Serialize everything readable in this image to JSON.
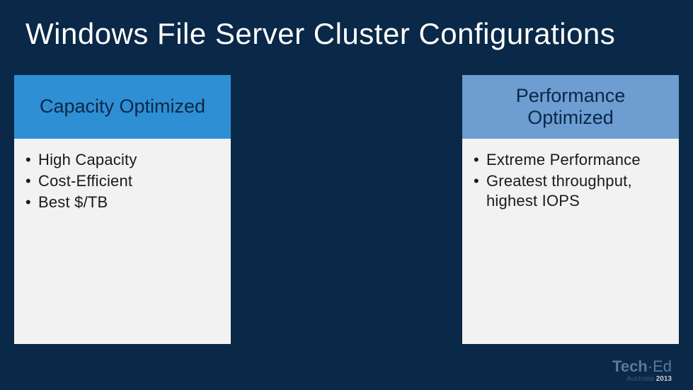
{
  "slide": {
    "title": "Windows File Server Cluster Configurations",
    "background_color": "#0a2847",
    "title_color": "#ffffff",
    "title_fontsize": 42
  },
  "columns": {
    "left": {
      "header": "Capacity Optimized",
      "header_bg": "#2f8fd4",
      "header_text_color": "#0a2847",
      "body_bg": "#f2f2f2",
      "bullets": [
        "High Capacity",
        "Cost-Efficient",
        "Best $/TB"
      ]
    },
    "right": {
      "header": "Performance Optimized",
      "header_bg": "#6d9dd1",
      "header_text_color": "#0a2847",
      "body_bg": "#f2f2f2",
      "bullets": [
        "Extreme Performance",
        "Greatest throughput, highest IOPS"
      ]
    },
    "bullet_fontsize": 22,
    "bullet_color": "#1a1a1a"
  },
  "footer": {
    "brand_bold": "Tech",
    "brand_light": "·Ed",
    "sub_text": "Australia ",
    "year": "2013",
    "brand_color": "#5a7a99"
  }
}
